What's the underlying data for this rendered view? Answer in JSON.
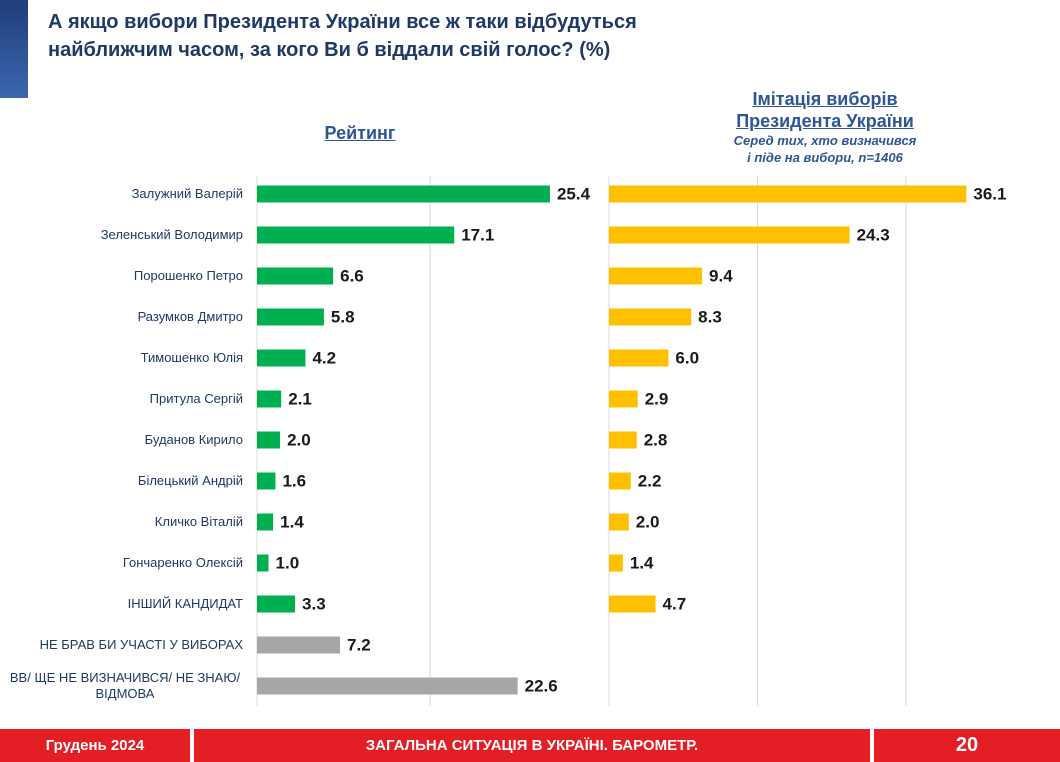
{
  "title": [
    "А якщо вибори Президента України все ж таки відбудуться",
    "найближчим часом, за кого Ви б віддали свій голос? (%)"
  ],
  "chart_data": [
    {
      "type": "barh",
      "title": [
        "Рейтинг"
      ],
      "categories": [
        "Залужний Валерій",
        "Зеленський Володимир",
        "Порошенко Петро",
        "Разумков Дмитро",
        "Тимошенко Юлія",
        "Притула Сергій",
        "Буданов Кирило",
        "Білецький Андрій",
        "Кличко Віталій",
        "Гончаренко Олексій",
        "ІНШИЙ КАНДИДАТ",
        "НЕ БРАВ БИ УЧАСТІ У ВИБОРАХ",
        "ВВ/ ЩЕ НЕ ВИЗНАЧИВСЯ/ НЕ ЗНАЮ/ ВІДМОВА"
      ],
      "values": [
        25.4,
        17.1,
        6.6,
        5.8,
        4.2,
        2.1,
        2.0,
        1.6,
        1.4,
        1.0,
        3.3,
        7.2,
        22.6
      ],
      "value_labels": [
        "25.4",
        "17.1",
        "6.6",
        "5.8",
        "4.2",
        "2.1",
        "2.0",
        "1.6",
        "1.4",
        "1.0",
        "3.3",
        "7.2",
        "22.6"
      ],
      "colors": [
        "#00b050",
        "#00b050",
        "#00b050",
        "#00b050",
        "#00b050",
        "#00b050",
        "#00b050",
        "#00b050",
        "#00b050",
        "#00b050",
        "#00b050",
        "#a6a6a6",
        "#a6a6a6"
      ],
      "xlim": [
        0,
        30
      ],
      "xticks": [
        0,
        15
      ],
      "grid": true
    },
    {
      "type": "barh",
      "title": [
        "Імітація виборів",
        "Президента України"
      ],
      "subtitle": [
        "Серед тих, хто визначився",
        "і піде на вибори, n=1406"
      ],
      "values": [
        36.1,
        24.3,
        9.4,
        8.3,
        6.0,
        2.9,
        2.8,
        2.2,
        2.0,
        1.4,
        4.7
      ],
      "value_labels": [
        "36.1",
        "24.3",
        "9.4",
        "8.3",
        "6.0",
        "2.9",
        "2.8",
        "2.2",
        "2.0",
        "1.4",
        "4.7"
      ],
      "color": "#ffc000",
      "xlim": [
        0,
        40
      ],
      "xticks": [
        0,
        15,
        30
      ],
      "grid": true
    }
  ],
  "footer": {
    "left": "Грудень 2024",
    "center": "ЗАГАЛЬНА СИТУАЦІЯ В УКРАЇНІ. БАРОМЕТР.",
    "page": "20"
  }
}
